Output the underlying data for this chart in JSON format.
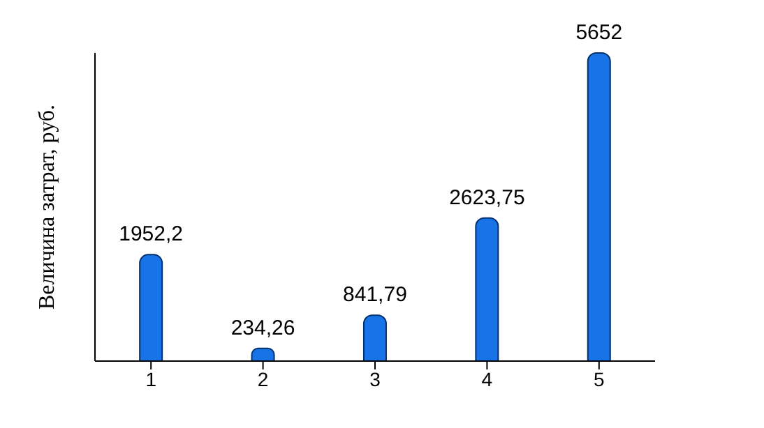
{
  "chart_data": {
    "type": "bar",
    "ylabel": "Величина  затрат, руб.",
    "categories": [
      "1",
      "2",
      "3",
      "4",
      "5"
    ],
    "values": [
      1952.2,
      234.26,
      841.79,
      2623.75,
      5652
    ],
    "value_labels": [
      "1952,2",
      "234,26",
      "841,79",
      "2623,75",
      "5652"
    ],
    "color": "#1874e6",
    "grid": false,
    "legend": false
  }
}
